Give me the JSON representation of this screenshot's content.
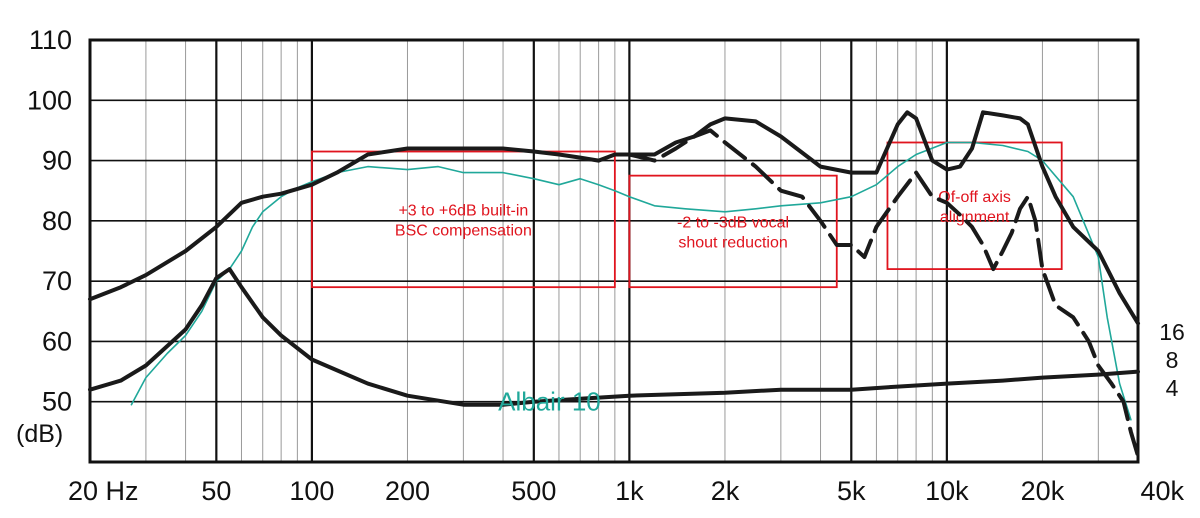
{
  "chart_data": {
    "type": "line",
    "title": "",
    "xscale": "log",
    "xlim": [
      20,
      40000
    ],
    "ylim": [
      40,
      110
    ],
    "y_unit_label": "(dB)",
    "x_tick_labels": [
      {
        "v": 20,
        "label": "20 Hz"
      },
      {
        "v": 50,
        "label": "50"
      },
      {
        "v": 100,
        "label": "100"
      },
      {
        "v": 200,
        "label": "200"
      },
      {
        "v": 500,
        "label": "500"
      },
      {
        "v": 1000,
        "label": "1k"
      },
      {
        "v": 2000,
        "label": "2k"
      },
      {
        "v": 5000,
        "label": "5k"
      },
      {
        "v": 10000,
        "label": "10k"
      },
      {
        "v": 20000,
        "label": "20k"
      },
      {
        "v": 40000,
        "label": "40k"
      }
    ],
    "y_tick_labels": [
      {
        "v": 110,
        "label": "110"
      },
      {
        "v": 100,
        "label": "100"
      },
      {
        "v": 90,
        "label": "90"
      },
      {
        "v": 80,
        "label": "80"
      },
      {
        "v": 70,
        "label": "70"
      },
      {
        "v": 60,
        "label": "60"
      },
      {
        "v": 50,
        "label": "50"
      }
    ],
    "impedance_axis_labels": [
      "16",
      "8",
      "4"
    ],
    "grid": true,
    "series": [
      {
        "name": "Albair 10",
        "color": "#20a89a",
        "points": [
          [
            27,
            49.5
          ],
          [
            30,
            54
          ],
          [
            35,
            58
          ],
          [
            40,
            61
          ],
          [
            45,
            65
          ],
          [
            50,
            70
          ],
          [
            55,
            72
          ],
          [
            60,
            75
          ],
          [
            65,
            79
          ],
          [
            70,
            81.5
          ],
          [
            80,
            84
          ],
          [
            90,
            85.5
          ],
          [
            100,
            86.5
          ],
          [
            120,
            88
          ],
          [
            150,
            89
          ],
          [
            200,
            88.5
          ],
          [
            250,
            89
          ],
          [
            300,
            88
          ],
          [
            400,
            88
          ],
          [
            500,
            87
          ],
          [
            600,
            86
          ],
          [
            700,
            87
          ],
          [
            800,
            86
          ],
          [
            900,
            85
          ],
          [
            1000,
            84
          ],
          [
            1200,
            82.5
          ],
          [
            1500,
            82
          ],
          [
            2000,
            81.5
          ],
          [
            2500,
            82
          ],
          [
            3000,
            82.5
          ],
          [
            4000,
            83
          ],
          [
            5000,
            84
          ],
          [
            6000,
            86
          ],
          [
            7000,
            89
          ],
          [
            8000,
            91
          ],
          [
            10000,
            93
          ],
          [
            12000,
            93
          ],
          [
            15000,
            92.5
          ],
          [
            18000,
            91.5
          ],
          [
            20000,
            90
          ],
          [
            25000,
            84
          ],
          [
            30000,
            74
          ],
          [
            32000,
            64
          ],
          [
            35000,
            53
          ],
          [
            38000,
            47
          ]
        ]
      },
      {
        "name": "",
        "color": "#1a1a1a",
        "points": [
          [
            20,
            67
          ],
          [
            25,
            69
          ],
          [
            30,
            71
          ],
          [
            40,
            75
          ],
          [
            50,
            79
          ],
          [
            60,
            83
          ],
          [
            70,
            84
          ],
          [
            80,
            84.5
          ],
          [
            100,
            86
          ],
          [
            120,
            88
          ],
          [
            150,
            91
          ],
          [
            200,
            92
          ],
          [
            300,
            92
          ],
          [
            400,
            92
          ],
          [
            500,
            91.5
          ],
          [
            600,
            91
          ],
          [
            700,
            90.5
          ],
          [
            800,
            90
          ],
          [
            900,
            91
          ],
          [
            1000,
            91
          ],
          [
            1200,
            91
          ],
          [
            1400,
            93
          ],
          [
            1600,
            94
          ],
          [
            1800,
            96
          ],
          [
            2000,
            97
          ],
          [
            2500,
            96.5
          ],
          [
            3000,
            94
          ],
          [
            4000,
            89
          ],
          [
            5000,
            88
          ],
          [
            6000,
            88
          ],
          [
            7000,
            96
          ],
          [
            7500,
            98
          ],
          [
            8000,
            97
          ],
          [
            9000,
            90
          ],
          [
            10000,
            88.5
          ],
          [
            11000,
            89
          ],
          [
            12000,
            92
          ],
          [
            13000,
            98
          ],
          [
            15000,
            97.5
          ],
          [
            17000,
            97
          ],
          [
            18000,
            96
          ],
          [
            20000,
            89
          ],
          [
            22000,
            84
          ],
          [
            25000,
            79
          ],
          [
            30000,
            75
          ],
          [
            35000,
            68
          ],
          [
            40000,
            63
          ]
        ]
      },
      {
        "name": "",
        "color": "#1a1a1a",
        "points": [
          [
            20,
            52
          ],
          [
            25,
            53.5
          ],
          [
            30,
            56
          ],
          [
            40,
            62
          ],
          [
            45,
            66
          ],
          [
            50,
            70.5
          ],
          [
            55,
            72
          ],
          [
            60,
            69
          ],
          [
            70,
            64
          ],
          [
            80,
            61
          ],
          [
            100,
            57
          ],
          [
            150,
            53
          ],
          [
            200,
            51
          ],
          [
            300,
            49.5
          ],
          [
            400,
            49.5
          ],
          [
            500,
            50
          ],
          [
            700,
            50.5
          ],
          [
            1000,
            51
          ],
          [
            2000,
            51.5
          ],
          [
            3000,
            52
          ],
          [
            5000,
            52
          ],
          [
            7000,
            52.5
          ],
          [
            10000,
            53
          ],
          [
            15000,
            53.5
          ],
          [
            20000,
            54
          ],
          [
            30000,
            54.5
          ],
          [
            40000,
            55
          ]
        ]
      },
      {
        "name": "",
        "color": "#1a1a1a",
        "points": [
          [
            1000,
            91
          ],
          [
            1200,
            90
          ],
          [
            1400,
            92
          ],
          [
            1600,
            94
          ],
          [
            1800,
            95
          ],
          [
            2000,
            93
          ],
          [
            2500,
            89
          ],
          [
            3000,
            85
          ],
          [
            3500,
            84
          ],
          [
            4000,
            80
          ],
          [
            4500,
            76
          ],
          [
            5000,
            76
          ],
          [
            5500,
            74
          ],
          [
            6000,
            79
          ],
          [
            7000,
            84
          ],
          [
            8000,
            88
          ],
          [
            9000,
            84
          ],
          [
            10000,
            83
          ],
          [
            11000,
            81
          ],
          [
            12000,
            79
          ],
          [
            13000,
            76
          ],
          [
            14000,
            72
          ],
          [
            15000,
            75
          ],
          [
            16000,
            78
          ],
          [
            17000,
            82
          ],
          [
            18000,
            84
          ],
          [
            19000,
            80
          ],
          [
            20000,
            72
          ],
          [
            22000,
            66
          ],
          [
            25000,
            64
          ],
          [
            28000,
            60
          ],
          [
            30000,
            56
          ],
          [
            33000,
            53
          ],
          [
            36000,
            50
          ],
          [
            38000,
            45
          ],
          [
            40000,
            41
          ]
        ]
      }
    ],
    "annotations": [
      {
        "id": "bsc",
        "lines": [
          "+3 to +6dB built-in",
          "BSC compensation"
        ],
        "box": {
          "x0": 100,
          "x1": 900,
          "y0": 69,
          "y1": 91.5
        }
      },
      {
        "id": "vocal",
        "lines": [
          "-2 to -3dB vocal",
          "shout reduction"
        ],
        "box": {
          "x0": 1000,
          "x1": 4500,
          "y0": 69,
          "y1": 87.5
        }
      },
      {
        "id": "axis",
        "lines": [
          "Of-off axis",
          "alignment"
        ],
        "box": {
          "x0": 6500,
          "x1": 23000,
          "y0": 72,
          "y1": 93
        }
      }
    ],
    "series_label": {
      "text": "Albair 10",
      "x": 560,
      "y": 50
    }
  }
}
